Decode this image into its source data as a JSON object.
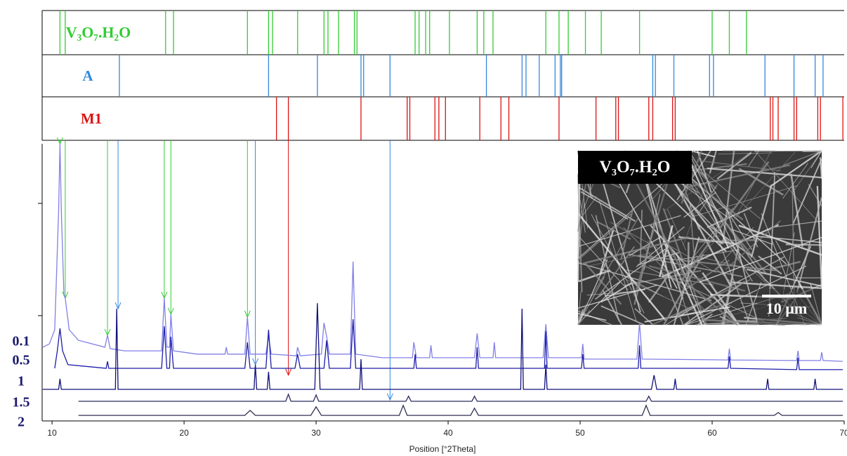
{
  "chart_data": {
    "type": "xrd",
    "xlabel": "Position [°2Theta]",
    "xlim": [
      9.25,
      70.0
    ],
    "xticks": [
      10,
      20,
      30,
      40,
      50,
      60,
      70
    ],
    "ylim": [
      0,
      100
    ],
    "yticks": [
      38,
      78.5
    ],
    "references": [
      {
        "name": "V₃O₇.H₂O",
        "color": "#33cc33",
        "positions": [
          10.6,
          11.0,
          18.6,
          19.2,
          24.8,
          26.4,
          26.7,
          28.6,
          30.6,
          30.9,
          31.7,
          32.9,
          33.1,
          37.5,
          37.8,
          38.3,
          38.6,
          40.1,
          42.2,
          42.7,
          43.4,
          47.4,
          48.4,
          49.1,
          50.4,
          51.6,
          54.5,
          60.0,
          61.3,
          62.6
        ],
        "drops": [
          {
            "x": 10.6,
            "y": 100
          },
          {
            "x": 11.0,
            "y": 44.3
          },
          {
            "x": 14.2,
            "y": 30.9
          },
          {
            "x": 18.5,
            "y": 44.3
          },
          {
            "x": 19.0,
            "y": 38.5
          },
          {
            "x": 24.8,
            "y": 37.5
          }
        ]
      },
      {
        "name": "A",
        "color": "#3388dd",
        "positions": [
          15.1,
          26.4,
          30.1,
          33.4,
          33.6,
          35.6,
          42.9,
          45.6,
          45.9,
          46.9,
          48.1,
          48.5,
          48.6,
          55.5,
          55.7,
          57.1,
          59.8,
          60.1,
          64.0,
          66.2,
          67.8,
          68.4
        ],
        "drops": [
          {
            "x": 15.0,
            "y": 40.5
          },
          {
            "x": 25.4,
            "y": 20.3
          },
          {
            "x": 35.6,
            "y": 7.6
          }
        ]
      },
      {
        "name": "M1",
        "color": "#dd1111",
        "positions": [
          27.0,
          27.9,
          33.4,
          36.9,
          37.1,
          39.0,
          39.3,
          39.8,
          42.4,
          44.0,
          44.6,
          48.4,
          51.2,
          52.7,
          52.9,
          55.2,
          55.5,
          57.0,
          57.2,
          64.4,
          64.6,
          65.0,
          66.2,
          66.4,
          68.0,
          68.2,
          69.9
        ],
        "drops": [
          {
            "x": 27.9,
            "y": 16.5
          }
        ]
      }
    ],
    "series": [
      {
        "name": "0.1",
        "color": "#8080e8",
        "x": [
          9.3,
          9.8,
          10.2,
          10.5,
          10.6,
          10.7,
          10.9,
          11.0,
          11.3,
          12.0,
          14.0,
          14.2,
          14.4,
          15.5,
          18.3,
          18.5,
          18.7,
          18.9,
          19.0,
          19.2,
          21.0,
          23.1,
          23.2,
          23.3,
          24.6,
          24.8,
          25.0,
          26.2,
          26.4,
          26.6,
          28.5,
          28.6,
          28.8,
          30.4,
          30.6,
          30.8,
          31.0,
          32.6,
          32.8,
          33.0,
          35.0,
          37.3,
          37.4,
          37.6,
          38.6,
          38.7,
          38.8,
          42.0,
          42.2,
          42.4,
          43.4,
          43.5,
          43.6,
          47.2,
          47.4,
          47.6,
          50.1,
          50.2,
          50.3,
          54.3,
          54.5,
          54.7,
          61.2,
          61.3,
          61.4,
          66.4,
          66.5,
          66.6,
          68.2,
          68.3,
          68.4,
          69.9
        ],
        "values": [
          26.6,
          27.8,
          32.9,
          76,
          100,
          76,
          45.6,
          44.3,
          32.9,
          29.1,
          26.6,
          30.9,
          26.1,
          25.3,
          25.3,
          44.3,
          26.6,
          26.6,
          38.5,
          25.3,
          24.1,
          24.1,
          26.6,
          24.1,
          24.1,
          37.5,
          24.1,
          24.1,
          30.4,
          24.1,
          23.5,
          26.6,
          23.5,
          24.1,
          35.4,
          30.4,
          24.1,
          24.1,
          57.5,
          24.1,
          22.8,
          22.8,
          28.4,
          22.8,
          22.8,
          27.3,
          22.8,
          22.8,
          31.6,
          22.8,
          22.8,
          28.4,
          22.8,
          22.8,
          34.9,
          22.8,
          22.8,
          27.8,
          22.3,
          22.3,
          35.4,
          22.3,
          22.0,
          26.1,
          22.0,
          21.8,
          25.3,
          21.8,
          21.8,
          24.8,
          21.8,
          21.5
        ]
      },
      {
        "name": "0.5",
        "color": "#1c1ca8",
        "x": [
          10.2,
          10.4,
          10.6,
          10.8,
          11.2,
          14.1,
          14.2,
          14.3,
          18.3,
          18.5,
          18.7,
          18.9,
          19.0,
          19.2,
          24.6,
          24.8,
          25.0,
          26.2,
          26.4,
          26.6,
          28.4,
          28.6,
          28.8,
          30.6,
          30.8,
          31.0,
          32.6,
          32.8,
          33.0,
          37.4,
          37.5,
          37.6,
          42.1,
          42.2,
          42.3,
          47.3,
          47.4,
          47.5,
          50.1,
          50.2,
          50.3,
          54.4,
          54.5,
          54.6,
          61.2,
          61.3,
          61.4,
          66.4,
          66.5,
          66.6,
          69.9
        ],
        "values": [
          19.0,
          25.3,
          33.4,
          25.3,
          20.3,
          19.0,
          21.5,
          19.0,
          19.0,
          34.2,
          19.0,
          19.0,
          30.4,
          19.0,
          19.0,
          28.4,
          19.0,
          19.0,
          32.9,
          19.0,
          19.0,
          24.1,
          19.0,
          19.0,
          29.1,
          19.0,
          19.0,
          36.7,
          19.0,
          19.0,
          24.1,
          19.0,
          19.0,
          26.6,
          19.0,
          19.0,
          32.4,
          19.0,
          19.0,
          24.1,
          19.0,
          19.0,
          27.3,
          19.0,
          19.0,
          23.3,
          19.0,
          18.5,
          22.8,
          18.5,
          18.5
        ]
      },
      {
        "name": "1",
        "color": "#10107a",
        "x": [
          9.3,
          10.5,
          10.6,
          10.7,
          14.8,
          14.9,
          15.0,
          25.3,
          25.4,
          25.5,
          26.3,
          26.4,
          26.5,
          29.9,
          30.1,
          30.3,
          33.3,
          33.4,
          33.5,
          45.5,
          45.6,
          45.7,
          47.3,
          47.4,
          47.5,
          55.4,
          55.6,
          55.8,
          57.1,
          57.2,
          57.3,
          64.1,
          64.2,
          64.3,
          67.7,
          67.8,
          67.9,
          69.9
        ],
        "values": [
          11.4,
          11.4,
          15.2,
          11.4,
          11.4,
          40.5,
          11.4,
          11.4,
          20.3,
          11.4,
          11.4,
          17.7,
          11.4,
          11.4,
          42.5,
          11.4,
          11.4,
          22.3,
          11.4,
          11.4,
          40.5,
          11.4,
          11.4,
          20.3,
          11.4,
          11.4,
          16.5,
          11.4,
          11.4,
          15.2,
          11.4,
          11.4,
          15.2,
          11.4,
          11.4,
          15.2,
          11.4,
          11.4
        ]
      },
      {
        "name": "1.5",
        "color": "#2a2a60",
        "x": [
          12,
          27.7,
          27.9,
          28.1,
          29.8,
          30.0,
          30.2,
          36.8,
          37.0,
          37.2,
          41.8,
          42.0,
          42.2,
          55.0,
          55.2,
          55.4,
          69.9
        ],
        "values": [
          7.1,
          7.1,
          9.6,
          7.1,
          7.1,
          9.4,
          7.1,
          7.1,
          8.9,
          7.1,
          7.1,
          8.9,
          7.1,
          7.1,
          8.9,
          7.1,
          7.1
        ]
      },
      {
        "name": "2",
        "color": "#303050",
        "x": [
          12,
          24.6,
          25.0,
          25.4,
          29.6,
          30.0,
          30.4,
          36.3,
          36.6,
          36.9,
          41.7,
          42.0,
          42.3,
          54.7,
          55.0,
          55.3,
          64.7,
          65.0,
          65.3,
          69.9
        ],
        "values": [
          2.0,
          2.0,
          3.8,
          2.0,
          2.0,
          5.1,
          2.0,
          2.0,
          5.6,
          2.0,
          2.0,
          4.6,
          2.0,
          2.0,
          5.6,
          2.0,
          2.0,
          3.0,
          2.0,
          2.0
        ]
      }
    ],
    "inset": {
      "label": "V₃O₇.H₂O",
      "scale_bar": "10 µm"
    }
  }
}
